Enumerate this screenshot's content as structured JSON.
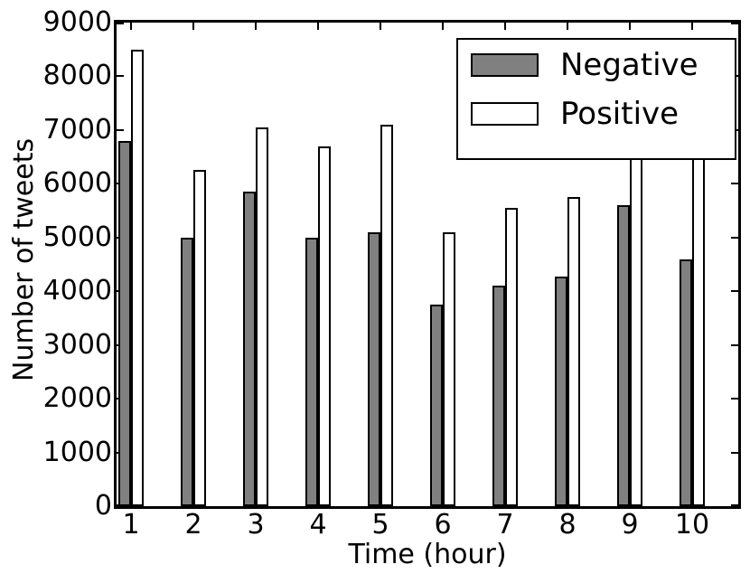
{
  "figure": {
    "background": "#ffffff",
    "text_color": "#000000"
  },
  "chart_data": {
    "type": "bar",
    "title": "",
    "xlabel": "Time (hour)",
    "ylabel": "Number of tweets",
    "categories": [
      "1",
      "2",
      "3",
      "4",
      "5",
      "6",
      "7",
      "8",
      "9",
      "10"
    ],
    "series": [
      {
        "name": "Negative",
        "fill": "#808080",
        "edge": "#000000",
        "values": [
          6800,
          5000,
          5850,
          5000,
          5100,
          3750,
          4100,
          4280,
          5600,
          4600
        ]
      },
      {
        "name": "Positive",
        "fill": "#ffffff",
        "edge": "#000000",
        "values": [
          8500,
          6250,
          7050,
          6700,
          7100,
          5100,
          5550,
          5750,
          6800,
          6550
        ]
      }
    ],
    "ylim": [
      0,
      9000
    ],
    "yticks": [
      0,
      1000,
      2000,
      3000,
      4000,
      5000,
      6000,
      7000,
      8000,
      9000
    ],
    "grid": false,
    "legend": {
      "location": "upper right",
      "entries": [
        "Negative",
        "Positive"
      ]
    }
  }
}
